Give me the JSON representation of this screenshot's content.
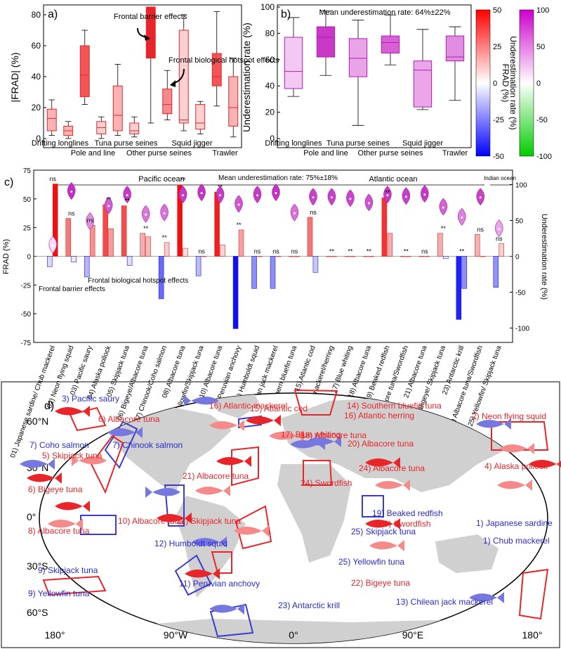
{
  "chart_data": [
    {
      "panel": "a)",
      "type": "box",
      "ylabel": "|FRAD| (%)",
      "ylim": [
        0,
        85
      ],
      "yticks": [
        0,
        20,
        40,
        60,
        80
      ],
      "groups": [
        "Drifting longlines",
        "Pole and line",
        "Tuna purse seines",
        "Other purse seines",
        "Squid jigger",
        "Trawler"
      ],
      "boxes": [
        {
          "group": "Drifting longlines",
          "min": 2,
          "q1": 5,
          "median": 13,
          "q3": 19,
          "max": 25,
          "fill": "#f8b4b4"
        },
        {
          "group": "Drifting longlines",
          "min": 0,
          "q1": 2,
          "median": 5,
          "q3": 8,
          "max": 11,
          "fill": "#f8b4b4"
        },
        {
          "group": "Pole and line",
          "min": 22,
          "q1": 27,
          "median": 41,
          "q3": 60,
          "max": 70,
          "fill": "#f0555a"
        },
        {
          "group": "Pole and line",
          "min": 0,
          "q1": 3,
          "median": 7,
          "q3": 11,
          "max": 14,
          "fill": "#fbd0d0"
        },
        {
          "group": "Tuna purse seines",
          "min": 2,
          "q1": 5,
          "median": 15,
          "q3": 34,
          "max": 48,
          "fill": "#f8b4b4"
        },
        {
          "group": "Tuna purse seines",
          "min": 1,
          "q1": 3,
          "median": 5,
          "q3": 10,
          "max": 14,
          "fill": "#fbd0d0"
        },
        {
          "group": "Other purse seines",
          "min": 10,
          "q1": 52,
          "median": 70,
          "q3": 85,
          "max": 85,
          "fill": "#e8262a"
        },
        {
          "group": "Other purse seines",
          "min": 12,
          "q1": 16,
          "median": 22,
          "q3": 32,
          "max": 44,
          "fill": "#f58a8a"
        },
        {
          "group": "Squid jigger",
          "min": 5,
          "q1": 10,
          "median": 12,
          "q3": 70,
          "max": 80,
          "fill": "#fbd0d0"
        },
        {
          "group": "Squid jigger",
          "min": 3,
          "q1": 6,
          "median": 10,
          "q3": 22,
          "max": 24,
          "fill": "#fbd0d0"
        },
        {
          "group": "Trawler",
          "min": 21,
          "q1": 34,
          "median": 40,
          "q3": 55,
          "max": 82,
          "fill": "#f0555a"
        },
        {
          "group": "Trawler",
          "min": 1,
          "q1": 8,
          "median": 20,
          "q3": 40,
          "max": 52,
          "fill": "#f8b4b4"
        }
      ],
      "annotations": [
        "Frontal barrier effects",
        "Frontal biological hotspot effects"
      ]
    },
    {
      "panel": "b)",
      "type": "box",
      "title": "Mean underestimation rate: 64%±22%",
      "ylabel": "Underestimation rate (%)",
      "ylim": [
        0,
        100
      ],
      "yticks": [
        0,
        20,
        40,
        60,
        80,
        100
      ],
      "groups": [
        "Drifting longlines",
        "Pole and line",
        "Tuna purse seines",
        "Other purse seines",
        "Squid jigger",
        "Trawler"
      ],
      "boxes": [
        {
          "group": "Drifting longlines",
          "min": 32,
          "q1": 38,
          "median": 51,
          "q3": 77,
          "max": 92,
          "fill": "#f3c8f2"
        },
        {
          "group": "Pole and line",
          "min": 48,
          "q1": 62,
          "median": 77,
          "q3": 85,
          "max": 97,
          "fill": "#c839c6"
        },
        {
          "group": "Tuna purse seines",
          "min": 10,
          "q1": 47,
          "median": 61,
          "q3": 76,
          "max": 90,
          "fill": "#e9a3e7"
        },
        {
          "group": "Other purse seines",
          "min": 56,
          "q1": 65,
          "median": 73,
          "q3": 78,
          "max": 94,
          "fill": "#d660d4"
        },
        {
          "group": "Squid jigger",
          "min": 22,
          "q1": 24,
          "median": 52,
          "q3": 59,
          "max": 83,
          "fill": "#eaa6e8"
        },
        {
          "group": "Trawler",
          "min": 29,
          "q1": 59,
          "median": 62,
          "q3": 78,
          "max": 85,
          "fill": "#e08ce0"
        }
      ]
    },
    {
      "panel": "c)",
      "type": "bar",
      "title": "Mean underestimation rate: 75%±18%",
      "ylabel": "FRAD (%)",
      "y2label": "Underestimation rate (%)",
      "ylim": [
        -75,
        75
      ],
      "yticks": [
        -75,
        -50,
        -25,
        0,
        25,
        50,
        75
      ],
      "y2lim": [
        -120,
        120
      ],
      "y2ticks": [
        -100,
        -50,
        0,
        50,
        100
      ],
      "regions": [
        "Pacific ocean",
        "Atlantic ocean",
        "Indian ocean"
      ],
      "categories": [
        "01) Japanese sardine/ Chub mackerel",
        "02) Neon flying squid",
        "03) Pacific saury",
        "04) Alaska pollock",
        "05) Skipjack tuna",
        "06) Bigeye/Albacore tuna",
        "07) Chinook/Coho salmon",
        "08) Albacore tuna",
        "09) Yellowfin/Skipjack tuna",
        "10) Albacore tuna",
        "11) Peruvian anchovy",
        "12) Humboldt squid",
        "13) Chilean jack mackerel",
        "14) Southern bluefin tuna",
        "15) Atlantic cod",
        "16) Atlantic mackerel/herring",
        "17) Blue whiting",
        "18) Albacore tuna",
        "19) Beaked redfish",
        "20) Albacore tuna/Swordfish",
        "21) Albacore tuna",
        "22) Bigeye/ Skipjack tuna",
        "23) Antarctic krill",
        "24) Albacore tuna/Swordfish",
        "25) Yellowfin/ Skipjack tuna"
      ],
      "series": [
        {
          "values": [
            [
              -9,
              63
            ],
            [
              33,
              -5
            ],
            [
              -18,
              27
            ],
            [
              45,
              24
            ],
            [
              44,
              -8
            ],
            [
              20,
              17
            ],
            [
              -37,
              12
            ],
            [
              62,
              7
            ],
            [
              -17,
              0
            ],
            [
              56,
              10
            ],
            [
              -63,
              23
            ],
            [
              -28,
              0
            ],
            [
              -28,
              0
            ],
            [
              0,
              0
            ],
            [
              34,
              -14
            ],
            [
              0,
              0
            ],
            [
              0,
              0
            ],
            [
              0,
              0
            ],
            [
              51,
              20
            ],
            [
              0,
              0
            ],
            [
              0,
              0
            ],
            [
              20,
              -2
            ],
            [
              -55,
              -28
            ],
            [
              19,
              0
            ],
            [
              -27,
              11
            ]
          ]
        },
        {
          "values": [
            15,
            90,
            48,
            70,
            85,
            58,
            60,
            85,
            88,
            85,
            72,
            85,
            88,
            60,
            82,
            82,
            80,
            74,
            85,
            83,
            86,
            68,
            54,
            82,
            38
          ]
        }
      ],
      "labels": [
        "ns",
        "ns",
        "ns",
        "**",
        "**",
        "**",
        "**",
        "**",
        "ns",
        "**",
        "**",
        "ns",
        "ns",
        "ns",
        "ns",
        "**",
        "**",
        "**",
        "**",
        "**",
        "ns",
        "**",
        "**",
        "ns",
        "ns"
      ],
      "annotations": [
        "Frontal barrier effects",
        "Frontal biological hotspot effects"
      ]
    },
    {
      "panel": "d)",
      "type": "map",
      "x_ticks": [
        "180°",
        "90°W",
        "0°",
        "90°E",
        "180°"
      ],
      "y_ticks": [
        "60°N",
        "30°N",
        "0°",
        "30°S",
        "60°S"
      ],
      "fisheries": [
        {
          "label": "1) Japanese sardine",
          "color": "#3b3bcf"
        },
        {
          "label": "1) Chub mackerel",
          "color": "#3b3bcf"
        },
        {
          "label": "2) Neon flying squid",
          "color": "#e8262a"
        },
        {
          "label": "3) Pacific saury",
          "color": "#3b3bcf"
        },
        {
          "label": "4) Alaska pollock",
          "color": "#e8262a"
        },
        {
          "label": "5) Skipjack tuna",
          "color": "#e8262a"
        },
        {
          "label": "6) Bigeye tuna",
          "color": "#e8262a"
        },
        {
          "label": "6) Albacore tuna",
          "color": "#e8262a"
        },
        {
          "label": "7) Chinook salmon",
          "color": "#3b3bcf"
        },
        {
          "label": "7) Coho salmon",
          "color": "#3b3bcf"
        },
        {
          "label": "8) Albacore tuna",
          "color": "#e8262a"
        },
        {
          "label": "9) Skipjack tuna",
          "color": "#3b3bcf"
        },
        {
          "label": "9) Yellowfin tuna",
          "color": "#3b3bcf"
        },
        {
          "label": "10) Albacore tuna",
          "color": "#e8262a"
        },
        {
          "label": "11) Peruvian anchovy",
          "color": "#3b3bcf"
        },
        {
          "label": "12) Humboldt squid",
          "color": "#3b3bcf"
        },
        {
          "label": "13) Chilean jack mackerel",
          "color": "#3b3bcf"
        },
        {
          "label": "14) Southern bluefin tuna",
          "color": "#e8262a"
        },
        {
          "label": "15) Atlantic cod",
          "color": "#e8262a"
        },
        {
          "label": "16) Atlantic mackerel",
          "color": "#e8262a"
        },
        {
          "label": "16) Atlantic herring",
          "color": "#e8262a"
        },
        {
          "label": "17) Blue whiting",
          "color": "#e8262a"
        },
        {
          "label": "18) Albacore tuna",
          "color": "#e8262a"
        },
        {
          "label": "19) Beaked redfish",
          "color": "#3b3bcf"
        },
        {
          "label": "20) Albacore tuna",
          "color": "#e8262a"
        },
        {
          "label": "20) Swordfish",
          "color": "#e8262a"
        },
        {
          "label": "21) Albacore tuna",
          "color": "#e8262a"
        },
        {
          "label": "22) Skipjack tuna",
          "color": "#e8262a"
        },
        {
          "label": "22) Bigeye tuna",
          "color": "#e8262a"
        },
        {
          "label": "23) Antarctic krill",
          "color": "#3b3bcf"
        },
        {
          "label": "24) Albacore tuna",
          "color": "#e8262a"
        },
        {
          "label": "24) Swordfish",
          "color": "#e8262a"
        },
        {
          "label": "25) Skipjack tuna",
          "color": "#3b3bcf"
        },
        {
          "label": "25) Yellowfin tuna",
          "color": "#3b3bcf"
        }
      ]
    }
  ],
  "colorbars": [
    {
      "label": "FRAD (%)",
      "ticks": [
        "50",
        "25",
        "0",
        "-25",
        "-50"
      ],
      "range": [
        -50,
        50
      ]
    },
    {
      "label": "Underestimation rate (%)",
      "ticks": [
        "100",
        "50",
        "0",
        "-50",
        "-100"
      ],
      "range": [
        -100,
        100
      ]
    }
  ],
  "colors": {
    "positive": "#e8262a",
    "negative": "#1a1ae6",
    "violin": "#b51bb8",
    "underestimation_high": "#cc00cc",
    "underestimation_low": "#00cc00"
  }
}
